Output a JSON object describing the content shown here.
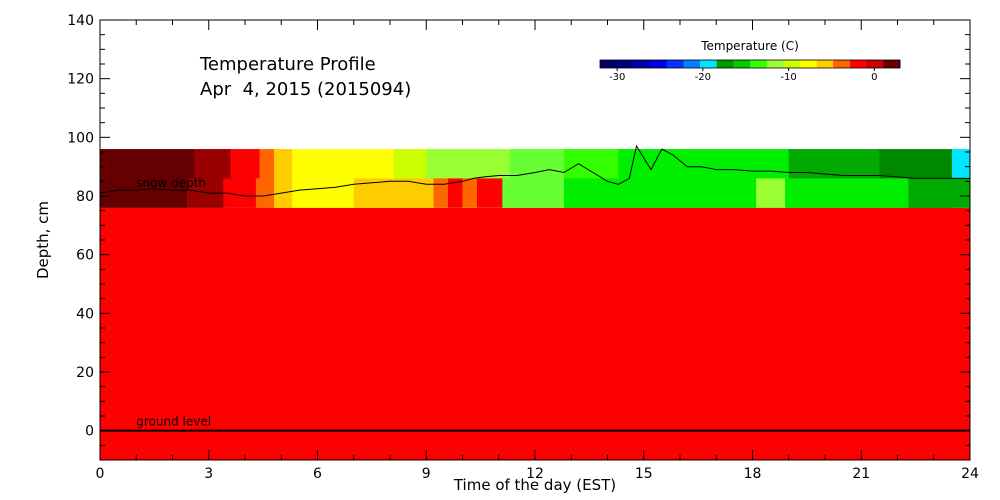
{
  "chart_data": {
    "type": "heatmap",
    "title_line1": "Temperature Profile",
    "title_line2": "Apr  4, 2015 (2015094)",
    "xlabel": "Time of the day (EST)",
    "ylabel": "Depth, cm",
    "xlim": [
      0,
      24
    ],
    "ylim": [
      -10,
      140
    ],
    "xticks": [
      "0",
      "3",
      "6",
      "9",
      "12",
      "15",
      "18",
      "21",
      "24"
    ],
    "yticks": [
      "0",
      "20",
      "40",
      "60",
      "80",
      "100",
      "120",
      "140"
    ],
    "colorbar": {
      "title": "Temperature (C)",
      "min": -32,
      "max": 3,
      "ticks": [
        "-30",
        "-20",
        "-10",
        "0"
      ],
      "colors": [
        "#000066",
        "#000080",
        "#0000b3",
        "#0000e6",
        "#0033ff",
        "#0080ff",
        "#00e6ff",
        "#009900",
        "#00cc00",
        "#33ff00",
        "#99ff33",
        "#ccff00",
        "#ffff00",
        "#ffcc00",
        "#ff6600",
        "#ff0000",
        "#cc0000",
        "#660000"
      ]
    },
    "sensor_top_band": {
      "y_range": [
        76,
        96
      ],
      "segments": [
        {
          "x0": 0.0,
          "x1": 2.6,
          "color": "#660000"
        },
        {
          "x0": 2.6,
          "x1": 3.6,
          "color": "#990000"
        },
        {
          "x0": 3.6,
          "x1": 4.4,
          "color": "#ff0000"
        },
        {
          "x0": 4.4,
          "x1": 4.8,
          "color": "#ff6600"
        },
        {
          "x0": 4.8,
          "x1": 5.3,
          "color": "#ffcc00"
        },
        {
          "x0": 5.3,
          "x1": 8.1,
          "color": "#ffff00"
        },
        {
          "x0": 8.1,
          "x1": 9.0,
          "color": "#ccff00"
        },
        {
          "x0": 9.0,
          "x1": 11.3,
          "color": "#99ff33"
        },
        {
          "x0": 11.3,
          "x1": 12.8,
          "color": "#66ff33"
        },
        {
          "x0": 12.8,
          "x1": 14.3,
          "color": "#33ff00"
        },
        {
          "x0": 14.3,
          "x1": 19.0,
          "color": "#00ee00"
        },
        {
          "x0": 19.0,
          "x1": 21.5,
          "color": "#00aa00"
        },
        {
          "x0": 21.5,
          "x1": 23.5,
          "color": "#008800"
        },
        {
          "x0": 23.5,
          "x1": 24.0,
          "color": "#00e6ff"
        }
      ]
    },
    "sensor_bottom_band": {
      "y_range": [
        76,
        86
      ],
      "segments": [
        {
          "x0": 0.0,
          "x1": 2.4,
          "color": "#660000"
        },
        {
          "x0": 2.4,
          "x1": 3.4,
          "color": "#990000"
        },
        {
          "x0": 3.4,
          "x1": 4.3,
          "color": "#ff0000"
        },
        {
          "x0": 4.3,
          "x1": 4.8,
          "color": "#ff6600"
        },
        {
          "x0": 4.8,
          "x1": 5.3,
          "color": "#ffcc00"
        },
        {
          "x0": 5.3,
          "x1": 7.0,
          "color": "#ffff00"
        },
        {
          "x0": 7.0,
          "x1": 9.2,
          "color": "#ffcc00"
        },
        {
          "x0": 9.2,
          "x1": 9.6,
          "color": "#ff6600"
        },
        {
          "x0": 9.6,
          "x1": 10.0,
          "color": "#ff0000"
        },
        {
          "x0": 10.0,
          "x1": 10.4,
          "color": "#ff6600"
        },
        {
          "x0": 10.4,
          "x1": 11.1,
          "color": "#ff0000"
        },
        {
          "x0": 11.1,
          "x1": 12.8,
          "color": "#66ff33"
        },
        {
          "x0": 12.8,
          "x1": 18.1,
          "color": "#00ee00"
        },
        {
          "x0": 18.1,
          "x1": 18.9,
          "color": "#99ff33"
        },
        {
          "x0": 18.9,
          "x1": 22.3,
          "color": "#00ee00"
        },
        {
          "x0": 22.3,
          "x1": 24.0,
          "color": "#00aa00"
        }
      ]
    },
    "ground_fill": {
      "y_range": [
        -10,
        76
      ],
      "color": "#ff0000"
    },
    "snow_depth": {
      "label": "snow depth",
      "x": [
        0,
        0.5,
        1,
        1.5,
        2,
        2.5,
        3,
        3.5,
        4,
        4.5,
        5,
        5.5,
        6,
        6.5,
        7,
        7.5,
        8,
        8.5,
        9,
        9.5,
        10,
        10.3,
        10.6,
        11,
        11.5,
        12,
        12.4,
        12.8,
        13.2,
        13.6,
        14,
        14.3,
        14.6,
        14.8,
        15.2,
        15.5,
        15.8,
        16.2,
        16.6,
        17,
        17.5,
        18,
        18.5,
        19,
        19.5,
        20,
        20.5,
        21,
        21.5,
        22,
        22.5,
        23,
        23.5,
        24
      ],
      "y": [
        81,
        82,
        82,
        82.5,
        82,
        82,
        81,
        81,
        80,
        80,
        81,
        82,
        82.5,
        83,
        84,
        84.5,
        85,
        85,
        84,
        84,
        85,
        86,
        86.5,
        87,
        87,
        88,
        89,
        88,
        91,
        88,
        85,
        84,
        86,
        97,
        89,
        96,
        94,
        90,
        90,
        89,
        89,
        88.5,
        88.5,
        88,
        88,
        87.5,
        87,
        87,
        87,
        86.5,
        86,
        86,
        86,
        86
      ]
    },
    "ground_level": {
      "label": "ground level",
      "y": 0
    }
  }
}
